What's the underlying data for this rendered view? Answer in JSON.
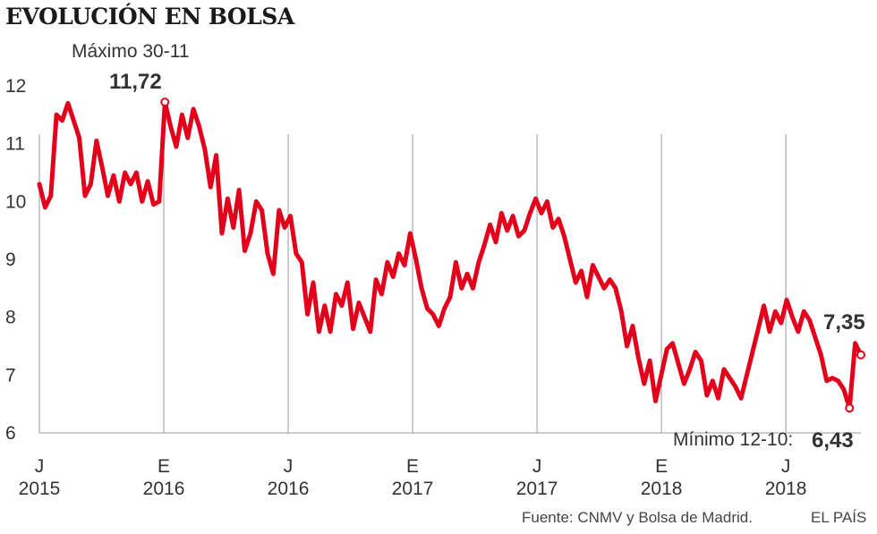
{
  "chart_data": {
    "type": "line",
    "title": "EVOLUCIÓN EN BOLSA",
    "xlabel": "",
    "ylabel": "",
    "ylim": [
      6,
      12
    ],
    "yticks": [
      6,
      7,
      8,
      9,
      10,
      11,
      12
    ],
    "xticks": [
      {
        "month": "J",
        "year": "2015"
      },
      {
        "month": "E",
        "year": "2016"
      },
      {
        "month": "J",
        "year": "2016"
      },
      {
        "month": "E",
        "year": "2017"
      },
      {
        "month": "J",
        "year": "2017"
      },
      {
        "month": "E",
        "year": "2018"
      },
      {
        "month": "J",
        "year": "2018"
      }
    ],
    "grid": "vertical lines at tick dates",
    "series": [
      {
        "color": "#e3001b",
        "values": [
          10.3,
          9.9,
          10.1,
          11.5,
          11.4,
          11.7,
          11.4,
          11.1,
          10.1,
          10.3,
          11.05,
          10.6,
          10.1,
          10.45,
          10.0,
          10.5,
          10.3,
          10.5,
          10.0,
          10.35,
          9.95,
          10.0,
          11.72,
          11.3,
          10.95,
          11.5,
          11.1,
          11.6,
          11.3,
          10.9,
          10.25,
          10.8,
          9.45,
          10.05,
          9.55,
          10.2,
          9.15,
          9.45,
          10.0,
          9.85,
          9.1,
          8.75,
          9.85,
          9.55,
          9.75,
          9.1,
          8.95,
          8.05,
          8.6,
          7.75,
          8.2,
          7.75,
          8.4,
          8.2,
          8.6,
          7.8,
          8.25,
          8.0,
          7.75,
          8.65,
          8.4,
          8.95,
          8.7,
          9.1,
          8.9,
          9.45,
          9.0,
          8.5,
          8.15,
          8.05,
          7.85,
          8.15,
          8.35,
          8.95,
          8.5,
          8.75,
          8.5,
          8.95,
          9.25,
          9.6,
          9.3,
          9.8,
          9.5,
          9.75,
          9.4,
          9.5,
          9.8,
          10.05,
          9.8,
          10.0,
          9.55,
          9.7,
          9.4,
          9.0,
          8.6,
          8.8,
          8.35,
          8.9,
          8.7,
          8.5,
          8.65,
          8.5,
          8.1,
          7.5,
          7.85,
          7.3,
          6.85,
          7.25,
          6.55,
          7.0,
          7.45,
          7.55,
          7.2,
          6.85,
          7.1,
          7.4,
          7.25,
          6.65,
          6.9,
          6.6,
          7.1,
          6.95,
          6.8,
          6.6,
          7.0,
          7.4,
          7.8,
          8.2,
          7.75,
          8.1,
          7.9,
          8.3,
          8.0,
          7.75,
          8.1,
          7.95,
          7.65,
          7.35,
          6.9,
          6.95,
          6.9,
          6.75,
          6.43,
          7.55,
          7.35
        ]
      }
    ],
    "annotations": {
      "max_label": "Máximo  30-11",
      "max_value": "11,72",
      "min_label": "Mínimo  12-10:",
      "min_value": "6,43",
      "last_value": "7,35"
    },
    "source": "Fuente: CNMV y Bolsa de Madrid.",
    "credit": "EL PAÍS"
  }
}
